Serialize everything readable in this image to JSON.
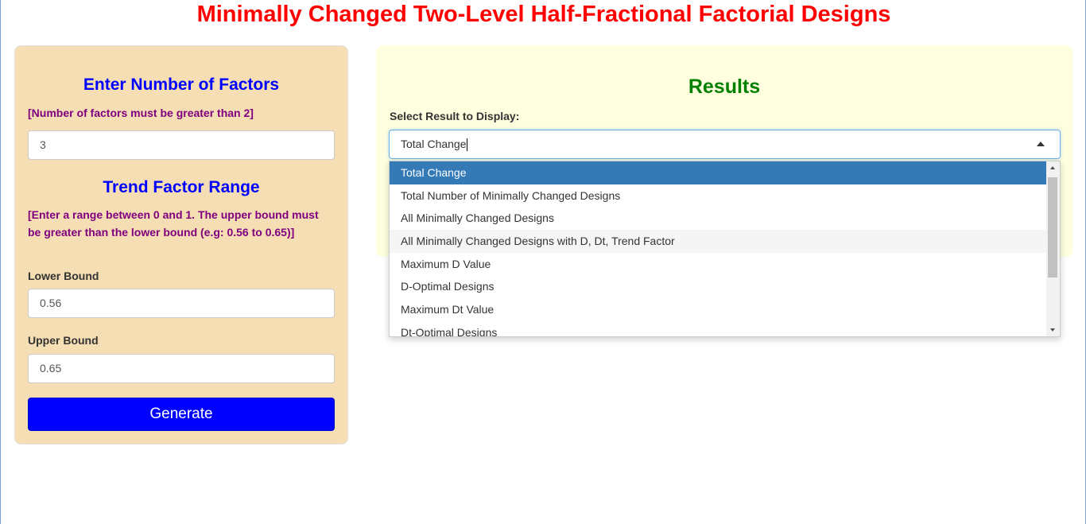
{
  "title": "Minimally Changed Two-Level Half-Fractional Factorial Designs",
  "left_panel": {
    "factors_heading": "Enter Number of Factors",
    "factors_note": "[Number of factors must be greater than 2]",
    "factors_value": "3",
    "trend_heading": "Trend Factor Range",
    "trend_note": "[Enter a range between 0 and 1. The upper bound must be greater than the lower bound (e.g: 0.56 to 0.65)]",
    "lower_label": "Lower Bound",
    "lower_value": "0.56",
    "upper_label": "Upper Bound",
    "upper_value": "0.65",
    "generate_label": "Generate"
  },
  "results": {
    "heading": "Results",
    "select_label": "Select Result to Display:",
    "selected": "Total Change",
    "options": [
      "Total Change",
      "Total Number of Minimally Changed Designs",
      "All Minimally Changed Designs",
      "All Minimally Changed Designs with D, Dt, Trend Factor",
      "Maximum D Value",
      "D-Optimal Designs",
      "Maximum Dt Value",
      "Dt-Optimal Designs"
    ]
  },
  "colors": {
    "title": "#ff0000",
    "heading_blue": "#0000ff",
    "note_purple": "#800080",
    "results_green": "#008000",
    "option_active": "#337ab7",
    "left_bg": "#f5deb3",
    "right_bg": "#ffffe0"
  }
}
